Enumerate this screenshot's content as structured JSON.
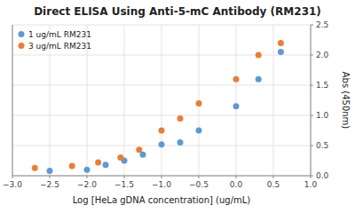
{
  "chart_data": {
    "type": "scatter",
    "title": "Direct ELISA Using Anti-5-mC Antibody (RM231)",
    "x_label": "Log [HeLa gDNA concentration] (ug/mL)",
    "y_label": "Abs (450nm)",
    "xlim": [
      -3,
      1
    ],
    "ylim": [
      0.0,
      2.5
    ],
    "xticks": [
      {
        "value": -3,
        "label": "−3.0"
      },
      {
        "value": -2.5,
        "label": "−2.5"
      },
      {
        "value": -2,
        "label": "−2.0"
      },
      {
        "value": -1.5,
        "label": "−1.5"
      },
      {
        "value": -1,
        "label": "−1.0"
      },
      {
        "value": -0.5,
        "label": "−0.5"
      },
      {
        "value": 0,
        "label": "0.0"
      },
      0.5,
      {
        "value": 1,
        "label": "1.0"
      }
    ],
    "yticks": [
      {
        "value": 0.0,
        "label": "0.0"
      },
      0.5,
      {
        "value": 1.0,
        "label": "1.0"
      },
      1.5,
      {
        "value": 2.0,
        "label": "2.0"
      },
      2.5
    ],
    "grid": true,
    "legend": "upper left",
    "series": [
      {
        "name": "1 ug/mL RM231",
        "color": "#5b9bd5",
        "x": [
          -2.5,
          -2.0,
          -1.75,
          -1.5,
          -1.25,
          -1.0,
          -0.75,
          -0.5,
          0.0,
          0.3,
          0.6
        ],
        "values": [
          0.08,
          0.1,
          0.18,
          0.25,
          0.35,
          0.52,
          0.55,
          0.75,
          1.15,
          1.6,
          2.05
        ]
      },
      {
        "name": "3 ug/mL RM231",
        "color": "#ed7d31",
        "x": [
          -2.7,
          -2.2,
          -1.85,
          -1.55,
          -1.3,
          -1.0,
          -0.75,
          -0.5,
          0.0,
          0.3,
          0.6
        ],
        "values": [
          0.13,
          0.16,
          0.22,
          0.3,
          0.43,
          0.75,
          0.95,
          1.2,
          1.6,
          2.0,
          2.2
        ]
      }
    ]
  }
}
